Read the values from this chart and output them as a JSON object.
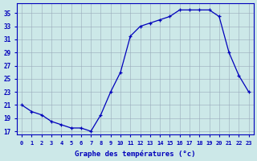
{
  "hours": [
    0,
    1,
    2,
    3,
    4,
    5,
    6,
    7,
    8,
    9,
    10,
    11,
    12,
    13,
    14,
    15,
    16,
    17,
    18,
    19,
    20,
    21,
    22,
    23
  ],
  "temps": [
    21,
    20,
    19.5,
    18.5,
    18,
    17.5,
    17.5,
    17,
    19.5,
    23,
    26,
    31.5,
    33,
    33.5,
    34,
    34.5,
    35.5,
    35.5,
    35.5,
    35.5,
    34.5,
    29,
    25.5,
    23
  ],
  "xlabel": "Graphe des températures (°c)",
  "ylabel_ticks": [
    17,
    19,
    21,
    23,
    25,
    27,
    29,
    31,
    33,
    35
  ],
  "xlim": [
    -0.5,
    23.5
  ],
  "ylim": [
    16.5,
    36.5
  ],
  "line_color": "#0000bb",
  "marker_color": "#0000bb",
  "bg_color": "#cce8e8",
  "grid_color": "#99aabb",
  "axis_color": "#0000bb",
  "tick_color": "#0000bb",
  "label_color": "#0000bb",
  "xtick_labels": [
    "0",
    "1",
    "2",
    "3",
    "4",
    "5",
    "6",
    "7",
    "8",
    "9",
    "10",
    "11",
    "12",
    "13",
    "14",
    "15",
    "16",
    "17",
    "18",
    "19",
    "20",
    "21",
    "22",
    "23"
  ]
}
